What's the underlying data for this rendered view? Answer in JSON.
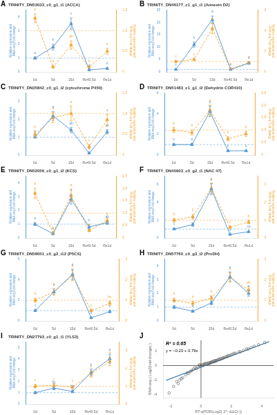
{
  "chart_data": [
    {
      "type": "line",
      "panel_label": "A",
      "title": "TRINITY_DN53033_c0_g1_i1 (ACCA)",
      "categories": [
        "0d",
        "5d",
        "15d",
        "Re40.5d",
        "Re1d"
      ],
      "ylabel": "Relative expression and RNA-seq Fold change",
      "y2label": "Relative expression and RNA-seq Fold change",
      "ylim": [
        0,
        4.5
      ],
      "yticks": [
        0,
        1,
        2,
        3,
        4
      ],
      "y2lim": [
        0,
        1.5
      ],
      "y2ticks": [
        0,
        0.5,
        1,
        1.5
      ],
      "grid": false,
      "series": [
        {
          "color": "#5B9BD5",
          "marker": "triangle",
          "line_style": "solid",
          "values": [
            1.0,
            1.8,
            3.5,
            0.15,
            0.25
          ],
          "errors": [
            0.08,
            0.2,
            0.4,
            0.03,
            0.05
          ],
          "letters": [
            "a",
            "b",
            "c",
            "d",
            "d"
          ],
          "reference_line": 1.0
        },
        {
          "axis": "y2",
          "color": "#F4A83A",
          "marker": "triangle",
          "line_style": "dashed",
          "values": [
            1.3,
            0.12,
            0.65,
            0.12,
            0.5
          ],
          "errors": [
            0.1,
            0.03,
            0.1,
            0.03,
            0.07
          ],
          "letters": [
            "a",
            "b",
            "ab",
            "b",
            "a"
          ],
          "reference_line": 1.0
        }
      ]
    },
    {
      "type": "line",
      "panel_label": "B",
      "title": "TRINITY_DN46177_c1_g1_i1 (Annexin D2)",
      "categories": [
        "0d",
        "5d",
        "15d",
        "Re40.5d",
        "Re1d"
      ],
      "ylabel": "Relative expression and RNA-seq Fold change",
      "y2label": "Relative expression and RNA-seq Fold change",
      "ylim": [
        0,
        25.0
      ],
      "yticks": [
        0,
        5,
        10,
        15,
        20,
        25
      ],
      "y2lim": [
        0,
        6.0
      ],
      "y2ticks": [
        0,
        2,
        4,
        6
      ],
      "grid": false,
      "series": [
        {
          "color": "#5B9BD5",
          "marker": "triangle",
          "line_style": "solid",
          "values": [
            1.0,
            11.0,
            21.0,
            1.0,
            3.5
          ],
          "errors": [
            0.1,
            1.0,
            1.5,
            0.1,
            0.4
          ],
          "letters": [
            "c",
            "b",
            "a",
            "e",
            "d"
          ],
          "reference_line": 1.0
        },
        {
          "axis": "y2",
          "color": "#F4A83A",
          "marker": "triangle",
          "line_style": "dashed",
          "values": [
            1.0,
            1.2,
            4.2,
            0.3,
            0.9
          ],
          "errors": [
            0.1,
            0.12,
            0.5,
            0.04,
            0.1
          ],
          "letters": [
            "c",
            "c",
            "a",
            "b",
            "c"
          ],
          "reference_line": 1.0
        }
      ]
    },
    {
      "type": "line",
      "panel_label": "C",
      "title": "TRINITY_DN35842_c0_g1_i2 (cytochrome P450)",
      "categories": [
        "0d",
        "5d",
        "15d",
        "Re40.5d",
        "Re1d"
      ],
      "ylabel": "Relative expression and RNA-seq Fold change",
      "y2label": "Relative expression and RNA-seq Fold change",
      "ylim": [
        0,
        3.5
      ],
      "yticks": [
        0,
        1,
        2,
        3
      ],
      "y2lim": [
        0,
        1.5
      ],
      "y2ticks": [
        0,
        0.5,
        1,
        1.5
      ],
      "grid": false,
      "series": [
        {
          "color": "#5B9BD5",
          "marker": "triangle",
          "line_style": "solid",
          "values": [
            1.0,
            2.2,
            1.4,
            0.1,
            1.3
          ],
          "errors": [
            0.05,
            0.25,
            0.15,
            0.02,
            0.12
          ],
          "letters": [
            "b",
            "a",
            "ab",
            "c",
            "ab"
          ],
          "reference_line": 1.0
        },
        {
          "axis": "y2",
          "color": "#F4A83A",
          "marker": "triangle",
          "line_style": "dashed",
          "values": [
            0.5,
            0.9,
            1.0,
            0.2,
            0.85
          ],
          "errors": [
            0.08,
            0.12,
            0.18,
            0.05,
            0.13
          ],
          "letters": [
            "b",
            "a",
            "a",
            "c",
            "a"
          ],
          "reference_line": 1.0
        }
      ]
    },
    {
      "type": "line",
      "panel_label": "D",
      "title": "TRINITY_DN51483_c1_g1_i2 (Dehydrin COR410)",
      "categories": [
        "0d",
        "5d",
        "15d",
        "Re40.5d",
        "Re1d"
      ],
      "ylabel": "Relative expression and RNA-seq Fold change",
      "y2label": "Relative expression and RNA-seq Fold change",
      "ylim": [
        0,
        6.0
      ],
      "yticks": [
        0,
        2,
        4,
        6
      ],
      "y2lim": [
        0,
        2.5
      ],
      "y2ticks": [
        0,
        0.5,
        1,
        1.5,
        2,
        2.5
      ],
      "grid": false,
      "series": [
        {
          "color": "#5B9BD5",
          "marker": "triangle",
          "line_style": "solid",
          "values": [
            1.0,
            1.0,
            4.2,
            0.4,
            0.4
          ],
          "errors": [
            0.08,
            0.1,
            0.5,
            0.05,
            0.05
          ],
          "letters": [
            "b",
            "b",
            "a",
            "b",
            "b"
          ],
          "reference_line": 1.0
        },
        {
          "axis": "y2",
          "color": "#F4A83A",
          "marker": "triangle",
          "line_style": "dashed",
          "values": [
            1.0,
            0.9,
            1.8,
            0.65,
            0.85
          ],
          "errors": [
            0.1,
            0.1,
            0.2,
            0.08,
            0.1
          ],
          "letters": [
            "b",
            "b",
            "a",
            "b",
            "b"
          ],
          "reference_line": 1.0
        }
      ]
    },
    {
      "type": "line",
      "panel_label": "E",
      "title": "TRINITY_DN52056_c0_g1_i2 (KCS)",
      "categories": [
        "0d",
        "5d",
        "15d",
        "Re40.5d",
        "Re1d"
      ],
      "ylabel": "Relative expression and RNA-seq Fold change",
      "y2label": "Relative expression and RNA-seq Fold change",
      "ylim": [
        0,
        4.5
      ],
      "yticks": [
        0,
        1,
        2,
        3,
        4
      ],
      "y2lim": [
        0,
        2.5
      ],
      "y2ticks": [
        0,
        0.5,
        1,
        1.5,
        2,
        2.5
      ],
      "grid": false,
      "series": [
        {
          "color": "#5B9BD5",
          "marker": "triangle",
          "line_style": "solid",
          "values": [
            1.0,
            0.3,
            2.8,
            0.8,
            1.1
          ],
          "errors": [
            0.1,
            0.05,
            0.35,
            0.15,
            0.12
          ],
          "letters": [
            "a",
            "b",
            "a",
            "b",
            "ab"
          ],
          "reference_line": 1.0
        },
        {
          "axis": "y2",
          "color": "#F4A83A",
          "marker": "triangle",
          "line_style": "dashed",
          "values": [
            1.8,
            0.2,
            1.7,
            0.3,
            0.7
          ],
          "errors": [
            0.2,
            0.04,
            0.25,
            0.05,
            0.1
          ],
          "letters": [
            "a",
            "c",
            "a",
            "b",
            "b"
          ],
          "reference_line": 1.0
        }
      ]
    },
    {
      "type": "line",
      "panel_label": "F",
      "title": "TRINITY_DN40903_c0_g2_i1 (NAC 47)",
      "categories": [
        "0d",
        "5d",
        "15d",
        "Re40.5d",
        "Re1d"
      ],
      "ylabel": "Relative expression and RNA-seq Fold change",
      "y2label": "Relative expression and RNA-seq Fold change",
      "ylim": [
        0,
        7.0
      ],
      "yticks": [
        0,
        2,
        4,
        6
      ],
      "y2lim": [
        0,
        3.5
      ],
      "y2ticks": [
        0,
        1,
        2,
        3
      ],
      "grid": false,
      "series": [
        {
          "color": "#5B9BD5",
          "marker": "triangle",
          "line_style": "solid",
          "values": [
            1.0,
            1.5,
            5.5,
            0.4,
            0.7
          ],
          "errors": [
            0.1,
            0.2,
            0.6,
            0.05,
            0.08
          ],
          "letters": [
            "c",
            "b",
            "a",
            "d",
            "cd"
          ],
          "reference_line": 1.0
        },
        {
          "axis": "y2",
          "color": "#F4A83A",
          "marker": "triangle",
          "line_style": "dashed",
          "values": [
            1.0,
            1.2,
            2.8,
            0.6,
            0.9
          ],
          "errors": [
            0.1,
            0.12,
            0.3,
            0.06,
            0.1
          ],
          "letters": [
            "b",
            "b",
            "a",
            "c",
            "b"
          ],
          "reference_line": 1.0
        }
      ]
    },
    {
      "type": "line",
      "panel_label": "G",
      "title": "TRINITY_DN58051_c0_g2_i12 (P5CS)",
      "categories": [
        "0d",
        "5d",
        "15d",
        "Re40.5d",
        "Re1d"
      ],
      "ylabel": "Relative expression and RNA-seq Fold change",
      "y2label": "Relative expression and RNA-seq Fold change",
      "ylim": [
        0,
        6.0
      ],
      "yticks": [
        0,
        2,
        4,
        6
      ],
      "y2lim": [
        0,
        3.0
      ],
      "y2ticks": [
        0,
        1,
        2,
        3
      ],
      "grid": false,
      "series": [
        {
          "color": "#5B9BD5",
          "marker": "triangle",
          "line_style": "solid",
          "values": [
            1.0,
            2.8,
            4.5,
            0.3,
            0.9
          ],
          "errors": [
            0.08,
            0.3,
            0.5,
            0.03,
            0.1
          ],
          "letters": [
            "c",
            "b",
            "a",
            "d",
            "c"
          ],
          "reference_line": 1.0
        },
        {
          "axis": "y2",
          "color": "#F4A83A",
          "marker": "triangle",
          "line_style": "dashed",
          "values": [
            1.0,
            1.4,
            2.2,
            0.5,
            0.85
          ],
          "errors": [
            0.1,
            0.14,
            0.25,
            0.05,
            0.1
          ],
          "letters": [
            "b",
            "b",
            "a",
            "c",
            "bc"
          ],
          "reference_line": 1.0
        }
      ]
    },
    {
      "type": "line",
      "panel_label": "H",
      "title": "TRINITY_DN57760_c0_g3_i2 (ProDH)",
      "categories": [
        "0d",
        "5d",
        "15d",
        "Re40.5d",
        "Re1d"
      ],
      "ylabel": "Relative expression and RNA-seq Fold change",
      "y2label": "Relative expression and RNA-seq Fold change",
      "ylim": [
        0,
        4.5
      ],
      "yticks": [
        0,
        1,
        2,
        3,
        4
      ],
      "y2lim": [
        0,
        3.0
      ],
      "y2ticks": [
        0,
        1,
        2,
        3
      ],
      "grid": false,
      "series": [
        {
          "color": "#5B9BD5",
          "marker": "triangle",
          "line_style": "solid",
          "values": [
            1.0,
            0.7,
            1.3,
            3.2,
            2.0
          ],
          "errors": [
            0.1,
            0.07,
            0.13,
            0.35,
            0.2
          ],
          "letters": [
            "b",
            "b",
            "b",
            "a",
            "a"
          ],
          "reference_line": 1.0
        },
        {
          "axis": "y2",
          "color": "#F4A83A",
          "marker": "triangle",
          "line_style": "dashed",
          "values": [
            1.0,
            0.85,
            1.1,
            2.1,
            1.5
          ],
          "errors": [
            0.1,
            0.09,
            0.11,
            0.22,
            0.15
          ],
          "letters": [
            "b",
            "b",
            "b",
            "a",
            "ab"
          ],
          "reference_line": 1.0
        }
      ]
    },
    {
      "type": "line",
      "panel_label": "I",
      "title": "TRINITY_DN27793_c0_g1_i1 (YLS3)",
      "categories": [
        "0d",
        "5d",
        "15d",
        "Re40.5d",
        "Re1d"
      ],
      "ylabel": "Relative expression and RNA-seq Fold change",
      "y2label": "Relative expression and RNA-seq Fold change",
      "ylim": [
        0,
        5.5
      ],
      "yticks": [
        0,
        1,
        2,
        3,
        4,
        5
      ],
      "y2lim": [
        0,
        3.5
      ],
      "y2ticks": [
        0,
        1,
        2,
        3
      ],
      "grid": false,
      "series": [
        {
          "color": "#5B9BD5",
          "marker": "triangle",
          "line_style": "solid",
          "values": [
            1.0,
            1.4,
            1.1,
            2.8,
            4.0
          ],
          "errors": [
            0.1,
            0.14,
            0.11,
            0.3,
            0.4
          ],
          "letters": [
            "c",
            "bc",
            "bc",
            "b",
            "a"
          ],
          "reference_line": 1.0
        },
        {
          "axis": "y2",
          "color": "#F4A83A",
          "marker": "triangle",
          "line_style": "dashed",
          "values": [
            1.0,
            1.05,
            0.95,
            1.7,
            2.4
          ],
          "errors": [
            0.1,
            0.1,
            0.1,
            0.18,
            0.25
          ],
          "letters": [
            "c",
            "c",
            "c",
            "b",
            "a"
          ],
          "reference_line": 1.0
        }
      ]
    },
    {
      "type": "scatter",
      "panel_label": "J",
      "xlabel": "RT-qPCR(Log2( 2^−ΔΔCt ))",
      "ylabel": "RNA-seq ( Log2(fold change) )",
      "xlim": [
        -2.5,
        4.8
      ],
      "xticks": [
        -2,
        0,
        2,
        4
      ],
      "ylim": [
        -4.5,
        3.5
      ],
      "yticks": [
        -4,
        -2,
        0,
        2
      ],
      "grid": false,
      "annotations": [
        "R² = 0.65",
        "y = −0.23 + 0.79x"
      ],
      "hlines": [
        0
      ],
      "vlines": [
        0
      ],
      "series": [
        {
          "type": "scatter",
          "color": "#555555",
          "marker": "circle",
          "x": [
            -2.1,
            -1.8,
            -1.5,
            -1.4,
            -1.2,
            -1.0,
            -0.9,
            -0.7,
            -0.5,
            -0.4,
            -0.2,
            -0.1,
            0.0,
            0.1,
            0.2,
            0.3,
            0.4,
            0.5,
            0.6,
            0.7,
            0.8,
            0.9,
            1.0,
            1.1,
            1.2,
            1.3,
            1.4,
            1.5,
            1.6,
            1.8,
            2.0,
            2.2,
            2.5,
            2.8,
            3.0,
            3.3,
            3.8,
            4.2,
            -1.6,
            -0.8,
            -0.3,
            0.15,
            0.55,
            0.95,
            1.25,
            1.75,
            2.3,
            0.65,
            1.05,
            -1.3,
            -0.6,
            0.25,
            0.85,
            1.45,
            2.1,
            0.4,
            1.7,
            3.5,
            -0.1,
            0.7,
            1.9,
            2.6,
            3.1
          ],
          "values": [
            -3.8,
            -2.9,
            -2.5,
            -2.0,
            -1.7,
            -1.3,
            -1.0,
            -0.8,
            -0.5,
            -0.3,
            -0.1,
            0.0,
            0.0,
            0.1,
            0.2,
            0.3,
            0.3,
            0.4,
            0.4,
            0.5,
            0.6,
            0.7,
            0.7,
            0.8,
            0.9,
            1.0,
            1.0,
            1.1,
            1.2,
            1.4,
            1.5,
            1.7,
            1.9,
            2.1,
            2.3,
            2.5,
            2.9,
            3.2,
            -2.2,
            -1.1,
            -0.4,
            0.1,
            0.3,
            0.6,
            0.8,
            1.3,
            1.7,
            0.4,
            0.7,
            -1.8,
            -0.7,
            0.2,
            0.5,
            1.0,
            1.6,
            0.2,
            1.2,
            2.7,
            0.1,
            0.5,
            1.4,
            1.9,
            2.3
          ]
        },
        {
          "type": "line",
          "color": "#4682b4",
          "line_style": "solid",
          "x": [
            -2.3,
            4.5
          ],
          "values": [
            -2.047,
            3.325
          ]
        }
      ]
    }
  ]
}
